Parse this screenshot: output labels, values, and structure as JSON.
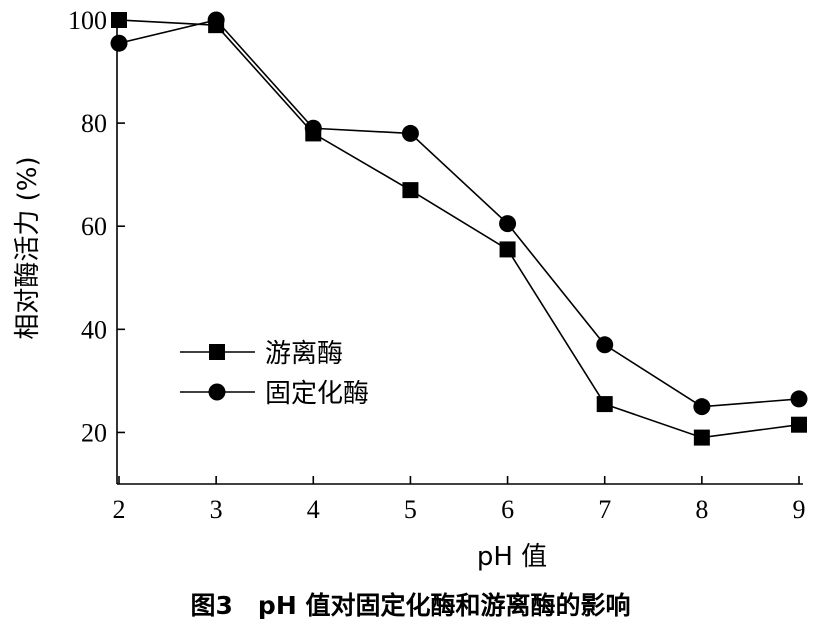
{
  "caption": "图3　pH 值对固定化酶和游离酶的影响",
  "chart_data": {
    "type": "line",
    "xlabel": "pH 值",
    "ylabel": "相对酶活力 (%)",
    "xlim": [
      2,
      9
    ],
    "ylim": [
      10,
      100
    ],
    "x_ticks": [
      2,
      3,
      4,
      5,
      6,
      7,
      8,
      9
    ],
    "y_ticks": [
      20,
      40,
      60,
      80,
      100
    ],
    "legend_position": "center-left",
    "grid": false,
    "x": [
      2,
      3,
      4,
      5,
      6,
      7,
      8,
      9
    ],
    "series": [
      {
        "name": "游离酶",
        "marker": "square",
        "color": "#000000",
        "values": [
          100,
          99,
          78,
          67,
          55.5,
          25.5,
          19,
          21.5
        ]
      },
      {
        "name": "固定化酶",
        "marker": "circle",
        "color": "#000000",
        "values": [
          95.5,
          100,
          79,
          78,
          60.5,
          37,
          25,
          26.5
        ]
      }
    ]
  }
}
